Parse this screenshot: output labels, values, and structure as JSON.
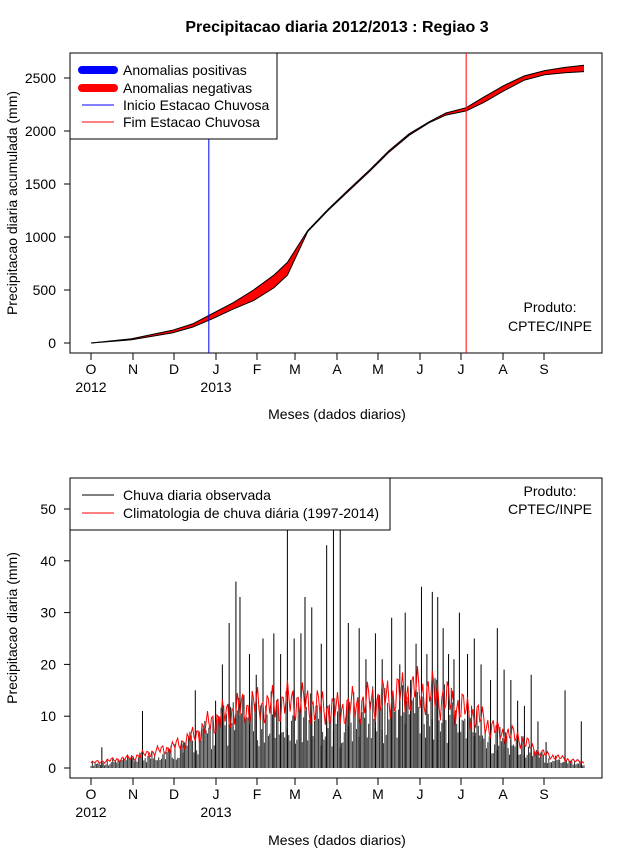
{
  "title": "Precipitacao diaria 2012/2013 : Regiao 3",
  "colors": {
    "positive": "#0000ff",
    "negative": "#ff0000",
    "start": "#0000ff",
    "end": "#ff0000",
    "observed": "#000000",
    "climatology": "#ff0000"
  },
  "chart_data": [
    {
      "type": "area",
      "title": "Precipitacao diaria 2012/2013 : Regiao 3",
      "xlabel": "Meses (dados diarios)",
      "ylabel": "Precipitacao diaria acumulada (mm)",
      "ylim": [
        0,
        2600
      ],
      "yticks": [
        0,
        500,
        1000,
        1500,
        2000,
        2500
      ],
      "month_ticks": [
        "O",
        "N",
        "D",
        "J",
        "F",
        "M",
        "A",
        "M",
        "J",
        "J",
        "A",
        "S"
      ],
      "year_labels": [
        {
          "label": "2012",
          "month_index": 0
        },
        {
          "label": "2013",
          "month_index": 3
        }
      ],
      "legend": [
        "Anomalias positivas",
        "Anomalias negativas",
        "Inicio Estacao Chuvosa",
        "Fim Estacao Chuvosa"
      ],
      "legend_position": "top-left",
      "annotation": [
        "Produto:",
        "CPTEC/INPE"
      ],
      "rainy_season_start_day": 87,
      "rainy_season_end_day": 277,
      "series": [
        {
          "name": "Observada (acumulada)",
          "days": [
            0,
            30,
            60,
            75,
            90,
            105,
            120,
            135,
            145,
            160,
            175,
            190,
            205,
            220,
            235,
            250,
            262,
            277,
            290,
            305,
            320,
            335,
            350,
            364
          ],
          "values": [
            0,
            30,
            95,
            150,
            230,
            320,
            400,
            520,
            640,
            1050,
            1250,
            1430,
            1610,
            1800,
            1960,
            2080,
            2150,
            2190,
            2270,
            2380,
            2480,
            2530,
            2550,
            2560
          ]
        },
        {
          "name": "Climatologia (acumulada)",
          "days": [
            0,
            30,
            60,
            75,
            90,
            105,
            120,
            135,
            145,
            160,
            175,
            190,
            205,
            220,
            235,
            250,
            262,
            277,
            290,
            305,
            320,
            335,
            350,
            364
          ],
          "values": [
            0,
            40,
            120,
            180,
            280,
            380,
            500,
            640,
            760,
            1060,
            1260,
            1445,
            1625,
            1815,
            1975,
            2090,
            2170,
            2220,
            2320,
            2430,
            2520,
            2570,
            2600,
            2620
          ]
        }
      ]
    },
    {
      "type": "bar",
      "xlabel": "Meses (dados diarios)",
      "ylabel": "Precipitacao diaria (mm)",
      "ylim": [
        0,
        53
      ],
      "yticks": [
        0,
        10,
        20,
        30,
        40,
        50
      ],
      "month_ticks": [
        "O",
        "N",
        "D",
        "J",
        "F",
        "M",
        "A",
        "M",
        "J",
        "J",
        "A",
        "S"
      ],
      "year_labels": [
        {
          "label": "2012",
          "month_index": 0
        },
        {
          "label": "2013",
          "month_index": 3
        }
      ],
      "legend": [
        "Chuva diaria observada",
        "Climatologia de chuva diária (1997-2014)"
      ],
      "legend_position": "top-left",
      "annotation": [
        "Produto:",
        "CPTEC/INPE"
      ],
      "highlight_bars": [
        {
          "day": 8,
          "value": 4
        },
        {
          "day": 30,
          "value": 2
        },
        {
          "day": 38,
          "value": 11
        },
        {
          "day": 68,
          "value": 3
        },
        {
          "day": 77,
          "value": 15
        },
        {
          "day": 92,
          "value": 13
        },
        {
          "day": 97,
          "value": 20
        },
        {
          "day": 102,
          "value": 28
        },
        {
          "day": 107,
          "value": 36
        },
        {
          "day": 110,
          "value": 33
        },
        {
          "day": 117,
          "value": 22
        },
        {
          "day": 122,
          "value": 18
        },
        {
          "day": 127,
          "value": 25
        },
        {
          "day": 135,
          "value": 26
        },
        {
          "day": 140,
          "value": 22
        },
        {
          "day": 145,
          "value": 52
        },
        {
          "day": 150,
          "value": 25
        },
        {
          "day": 155,
          "value": 26
        },
        {
          "day": 158,
          "value": 33
        },
        {
          "day": 163,
          "value": 31
        },
        {
          "day": 170,
          "value": 24
        },
        {
          "day": 174,
          "value": 43
        },
        {
          "day": 179,
          "value": 48
        },
        {
          "day": 184,
          "value": 52
        },
        {
          "day": 190,
          "value": 28
        },
        {
          "day": 198,
          "value": 27
        },
        {
          "day": 203,
          "value": 21
        },
        {
          "day": 210,
          "value": 26
        },
        {
          "day": 215,
          "value": 21
        },
        {
          "day": 222,
          "value": 29
        },
        {
          "day": 228,
          "value": 20
        },
        {
          "day": 232,
          "value": 30
        },
        {
          "day": 236,
          "value": 17
        },
        {
          "day": 240,
          "value": 24
        },
        {
          "day": 244,
          "value": 35
        },
        {
          "day": 248,
          "value": 22
        },
        {
          "day": 252,
          "value": 34
        },
        {
          "day": 256,
          "value": 33
        },
        {
          "day": 260,
          "value": 27
        },
        {
          "day": 264,
          "value": 22
        },
        {
          "day": 268,
          "value": 21
        },
        {
          "day": 272,
          "value": 30
        },
        {
          "day": 278,
          "value": 22
        },
        {
          "day": 283,
          "value": 25
        },
        {
          "day": 288,
          "value": 20
        },
        {
          "day": 295,
          "value": 17
        },
        {
          "day": 300,
          "value": 27
        },
        {
          "day": 305,
          "value": 19
        },
        {
          "day": 310,
          "value": 17
        },
        {
          "day": 315,
          "value": 13
        },
        {
          "day": 320,
          "value": 12
        },
        {
          "day": 325,
          "value": 18
        },
        {
          "day": 330,
          "value": 9
        },
        {
          "day": 336,
          "value": 5
        },
        {
          "day": 350,
          "value": 15
        },
        {
          "day": 362,
          "value": 9
        }
      ],
      "climatology": {
        "days": [
          0,
          15,
          30,
          45,
          60,
          75,
          90,
          105,
          120,
          135,
          150,
          165,
          180,
          195,
          210,
          225,
          240,
          255,
          270,
          285,
          300,
          315,
          330,
          345,
          364
        ],
        "values": [
          1,
          1.5,
          2,
          3,
          4,
          6,
          9,
          11,
          12,
          12,
          13,
          12,
          11,
          12,
          13,
          14,
          15,
          14,
          12,
          10,
          7,
          6,
          3,
          2,
          1
        ]
      }
    }
  ]
}
